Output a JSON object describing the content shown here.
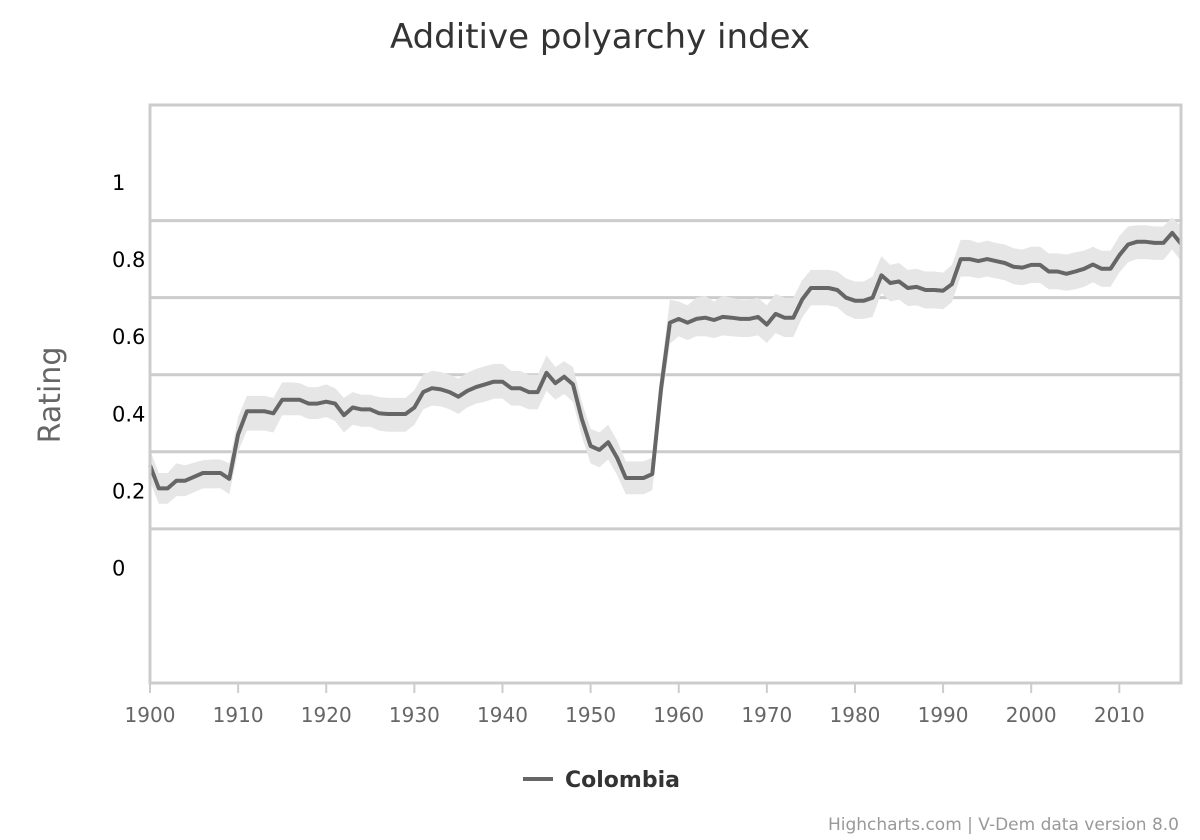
{
  "colors": {
    "series": "#666666",
    "band": "#e6e6e6",
    "grid": "#cccccc",
    "frame": "#cccccc"
  },
  "credits": "Highcharts.com | V-Dem data version 8.0",
  "chart_data": {
    "type": "line",
    "title": "Additive polyarchy index",
    "xlabel": "",
    "ylabel": "Rating",
    "xlim": [
      1900,
      2017
    ],
    "ylim": [
      -0.3,
      1.2
    ],
    "yticks": [
      0,
      0.2,
      0.4,
      0.6,
      0.8,
      1
    ],
    "ytick_labels": [
      "0",
      "0.2",
      "0.4",
      "0.6",
      "0.8",
      "1"
    ],
    "xticks": [
      1900,
      1910,
      1920,
      1930,
      1940,
      1950,
      1960,
      1970,
      1980,
      1990,
      2000,
      2010
    ],
    "xtick_labels": [
      "1900",
      "1910",
      "1920",
      "1930",
      "1940",
      "1950",
      "1960",
      "1970",
      "1980",
      "1990",
      "2000",
      "2010"
    ],
    "grid": true,
    "legend": "bottom-center",
    "series": [
      {
        "name": "Colombia",
        "x": [
          1900,
          1901,
          1902,
          1903,
          1904,
          1905,
          1906,
          1907,
          1908,
          1909,
          1910,
          1911,
          1912,
          1913,
          1914,
          1915,
          1916,
          1917,
          1918,
          1919,
          1920,
          1921,
          1922,
          1923,
          1924,
          1925,
          1926,
          1927,
          1928,
          1929,
          1930,
          1931,
          1932,
          1933,
          1934,
          1935,
          1936,
          1937,
          1938,
          1939,
          1940,
          1941,
          1942,
          1943,
          1944,
          1945,
          1946,
          1947,
          1948,
          1949,
          1950,
          1951,
          1952,
          1953,
          1954,
          1955,
          1956,
          1957,
          1958,
          1959,
          1960,
          1961,
          1962,
          1963,
          1964,
          1965,
          1966,
          1967,
          1968,
          1969,
          1970,
          1971,
          1972,
          1973,
          1974,
          1975,
          1976,
          1977,
          1978,
          1979,
          1980,
          1981,
          1982,
          1983,
          1984,
          1985,
          1986,
          1987,
          1988,
          1989,
          1990,
          1991,
          1992,
          1993,
          1994,
          1995,
          1996,
          1997,
          1998,
          1999,
          2000,
          2001,
          2002,
          2003,
          2004,
          2005,
          2006,
          2007,
          2008,
          2009,
          2010,
          2011,
          2012,
          2013,
          2014,
          2015,
          2016,
          2017
        ],
        "values": [
          0.265,
          0.205,
          0.205,
          0.225,
          0.225,
          0.235,
          0.245,
          0.245,
          0.245,
          0.23,
          0.345,
          0.405,
          0.405,
          0.405,
          0.4,
          0.435,
          0.435,
          0.435,
          0.425,
          0.425,
          0.43,
          0.425,
          0.395,
          0.415,
          0.41,
          0.41,
          0.4,
          0.398,
          0.398,
          0.398,
          0.415,
          0.455,
          0.465,
          0.462,
          0.455,
          0.443,
          0.458,
          0.468,
          0.475,
          0.482,
          0.482,
          0.465,
          0.465,
          0.455,
          0.455,
          0.505,
          0.478,
          0.495,
          0.475,
          0.385,
          0.315,
          0.305,
          0.325,
          0.285,
          0.232,
          0.232,
          0.232,
          0.242,
          0.465,
          0.635,
          0.645,
          0.635,
          0.645,
          0.648,
          0.642,
          0.65,
          0.648,
          0.645,
          0.645,
          0.65,
          0.63,
          0.658,
          0.648,
          0.648,
          0.695,
          0.725,
          0.725,
          0.725,
          0.72,
          0.7,
          0.692,
          0.692,
          0.7,
          0.758,
          0.738,
          0.742,
          0.725,
          0.728,
          0.72,
          0.72,
          0.718,
          0.735,
          0.8,
          0.8,
          0.795,
          0.8,
          0.795,
          0.79,
          0.78,
          0.778,
          0.785,
          0.785,
          0.768,
          0.768,
          0.762,
          0.768,
          0.775,
          0.786,
          0.775,
          0.775,
          0.81,
          0.838,
          0.845,
          0.845,
          0.842,
          0.842,
          0.868,
          0.84
        ],
        "upper": [
          0.305,
          0.245,
          0.245,
          0.27,
          0.265,
          0.272,
          0.278,
          0.28,
          0.28,
          0.27,
          0.39,
          0.445,
          0.445,
          0.445,
          0.44,
          0.48,
          0.48,
          0.478,
          0.468,
          0.468,
          0.475,
          0.465,
          0.44,
          0.455,
          0.448,
          0.448,
          0.442,
          0.44,
          0.44,
          0.44,
          0.46,
          0.5,
          0.51,
          0.507,
          0.5,
          0.49,
          0.505,
          0.515,
          0.522,
          0.528,
          0.528,
          0.51,
          0.51,
          0.5,
          0.5,
          0.55,
          0.52,
          0.535,
          0.52,
          0.43,
          0.36,
          0.35,
          0.37,
          0.33,
          0.275,
          0.275,
          0.275,
          0.285,
          0.51,
          0.695,
          0.69,
          0.68,
          0.7,
          0.705,
          0.69,
          0.705,
          0.7,
          0.695,
          0.695,
          0.7,
          0.68,
          0.71,
          0.7,
          0.7,
          0.745,
          0.772,
          0.772,
          0.772,
          0.768,
          0.75,
          0.742,
          0.742,
          0.755,
          0.808,
          0.785,
          0.79,
          0.772,
          0.775,
          0.768,
          0.768,
          0.765,
          0.785,
          0.85,
          0.85,
          0.842,
          0.848,
          0.842,
          0.838,
          0.828,
          0.825,
          0.832,
          0.832,
          0.815,
          0.815,
          0.812,
          0.818,
          0.822,
          0.832,
          0.822,
          0.822,
          0.86,
          0.885,
          0.888,
          0.888,
          0.885,
          0.885,
          0.908,
          0.885
        ],
        "lower": [
          0.225,
          0.165,
          0.165,
          0.185,
          0.185,
          0.195,
          0.205,
          0.205,
          0.205,
          0.19,
          0.3,
          0.355,
          0.355,
          0.355,
          0.35,
          0.395,
          0.395,
          0.395,
          0.385,
          0.385,
          0.39,
          0.38,
          0.35,
          0.37,
          0.365,
          0.365,
          0.355,
          0.352,
          0.352,
          0.352,
          0.37,
          0.41,
          0.42,
          0.418,
          0.41,
          0.398,
          0.415,
          0.425,
          0.43,
          0.438,
          0.438,
          0.42,
          0.42,
          0.41,
          0.41,
          0.458,
          0.435,
          0.45,
          0.43,
          0.34,
          0.27,
          0.26,
          0.28,
          0.24,
          0.19,
          0.19,
          0.19,
          0.2,
          0.42,
          0.58,
          0.6,
          0.59,
          0.6,
          0.6,
          0.595,
          0.602,
          0.6,
          0.598,
          0.598,
          0.602,
          0.582,
          0.608,
          0.598,
          0.598,
          0.648,
          0.68,
          0.68,
          0.68,
          0.675,
          0.655,
          0.645,
          0.645,
          0.65,
          0.712,
          0.69,
          0.695,
          0.678,
          0.68,
          0.672,
          0.672,
          0.67,
          0.688,
          0.755,
          0.755,
          0.75,
          0.755,
          0.75,
          0.745,
          0.735,
          0.732,
          0.738,
          0.738,
          0.722,
          0.722,
          0.718,
          0.722,
          0.728,
          0.74,
          0.728,
          0.728,
          0.765,
          0.792,
          0.8,
          0.8,
          0.798,
          0.798,
          0.825,
          0.795
        ]
      }
    ]
  }
}
